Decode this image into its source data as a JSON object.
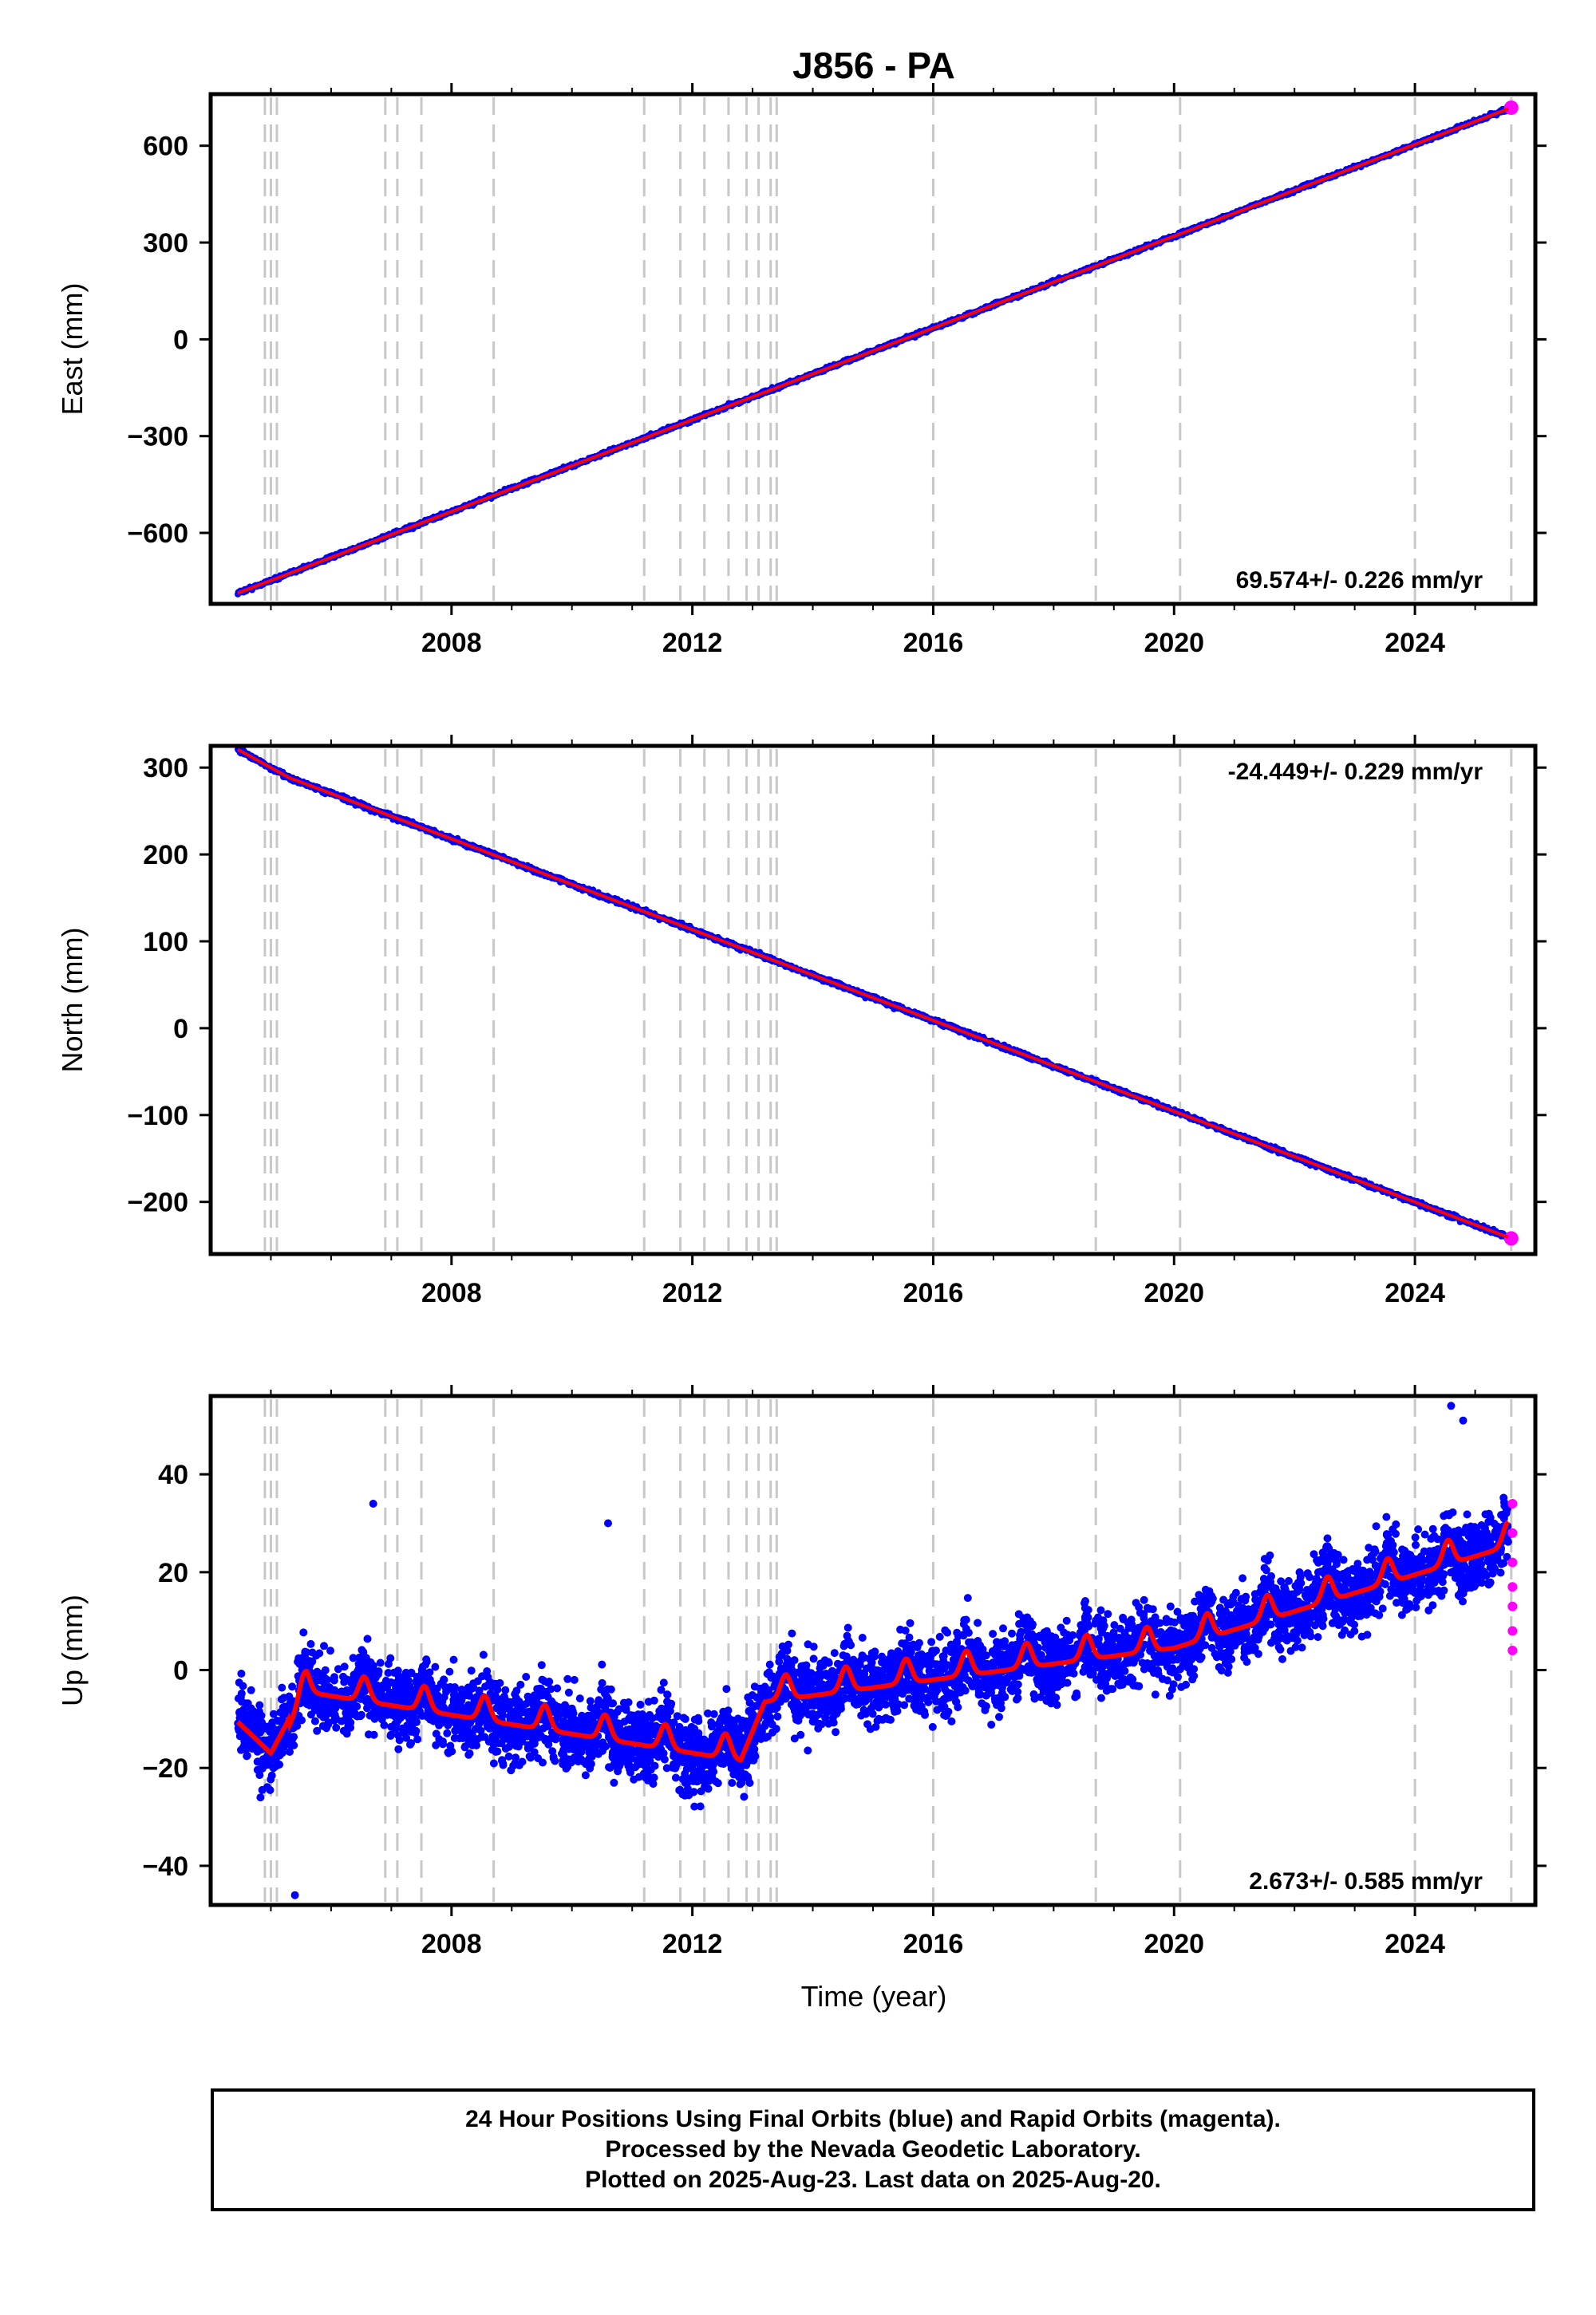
{
  "title": "J856 - PA",
  "xlabel": "Time (year)",
  "caption": {
    "line1": "24 Hour Positions Using Final Orbits (blue) and Rapid Orbits (magenta).",
    "line2": "Processed by the Nevada Geodetic Laboratory.",
    "line3": "Plotted on 2025-Aug-23. Last data on 2025-Aug-20."
  },
  "colors": {
    "final": "#0000ff",
    "rapid": "#ff00ff",
    "model": "#ff0000",
    "events": "#c8c8c8"
  },
  "chart_data": [
    {
      "type": "scatter",
      "component": "east",
      "ylabel": "East (mm)",
      "xlim": [
        2004.0,
        2026.0
      ],
      "ylim": [
        -820,
        760
      ],
      "xticks": [
        "2008",
        "2012",
        "2016",
        "2020",
        "2024"
      ],
      "yticks": [
        "600",
        "300",
        "0",
        "−300",
        "−600"
      ],
      "ytick_values": [
        600,
        300,
        0,
        -300,
        -600
      ],
      "rate_label": "69.574+/- 0.226 mm/yr",
      "rate_position": "bottom-right",
      "trend": {
        "x": [
          2004.4,
          2025.6
        ],
        "y": [
          -790,
          718
        ]
      },
      "scatter_mm": 6
    },
    {
      "type": "scatter",
      "component": "north",
      "ylabel": "North (mm)",
      "xlim": [
        2004.0,
        2026.0
      ],
      "ylim": [
        -260,
        325
      ],
      "xticks": [
        "2008",
        "2012",
        "2016",
        "2020",
        "2024"
      ],
      "yticks": [
        "300",
        "200",
        "100",
        "0",
        "−100",
        "−200"
      ],
      "ytick_values": [
        300,
        200,
        100,
        0,
        -100,
        -200
      ],
      "rate_label": "-24.449+/- 0.229 mm/yr",
      "rate_position": "top-right",
      "trend": {
        "x": [
          2004.4,
          2025.6
        ],
        "y": [
          312,
          -242
        ]
      },
      "scatter_mm": 3
    },
    {
      "type": "scatter",
      "component": "up",
      "ylabel": "Up (mm)",
      "xlim": [
        2004.0,
        2026.0
      ],
      "ylim": [
        -48,
        56
      ],
      "xticks": [
        "2008",
        "2012",
        "2016",
        "2020",
        "2024"
      ],
      "yticks": [
        "40",
        "20",
        "0",
        "−20",
        "−40"
      ],
      "ytick_values": [
        40,
        20,
        0,
        -20,
        -40
      ],
      "rate_label": "2.673+/- 0.585 mm/yr",
      "rate_position": "bottom-right",
      "seasonal_peaks_x": [
        2005.6,
        2006.5,
        2007.5,
        2008.5,
        2009.5,
        2010.5,
        2011.5,
        2012.5,
        2013.6,
        2014.5,
        2015.5,
        2016.5,
        2017.5,
        2018.5,
        2019.5,
        2020.5,
        2021.5,
        2022.5,
        2023.5,
        2024.5,
        2025.5
      ],
      "model_y": {
        "x": [
          2004.4,
          2005.0,
          2005.6,
          2012.8,
          2013.2,
          2020.0,
          2025.6
        ],
        "y": [
          -10,
          -17,
          -3,
          -17,
          -5,
          6,
          27
        ]
      },
      "outliers": [
        {
          "x": 2006.7,
          "y": 34
        },
        {
          "x": 2010.6,
          "y": 30
        },
        {
          "x": 2005.4,
          "y": -46
        },
        {
          "x": 2024.6,
          "y": 54
        },
        {
          "x": 2024.8,
          "y": 51
        }
      ],
      "scatter_mm": 7
    }
  ],
  "event_years": [
    2004.9,
    2005.0,
    2005.1,
    2006.9,
    2007.1,
    2007.5,
    2008.7,
    2011.2,
    2011.8,
    2012.2,
    2012.6,
    2012.9,
    2013.1,
    2013.3,
    2013.4,
    2016.0,
    2018.7,
    2020.1,
    2024.0,
    2025.6
  ],
  "x_ticks_years": [
    2008,
    2012,
    2016,
    2020,
    2024
  ],
  "x_minor_years": [
    2005,
    2006,
    2007,
    2009,
    2010,
    2011,
    2013,
    2014,
    2015,
    2017,
    2018,
    2019,
    2021,
    2022,
    2023,
    2025
  ]
}
